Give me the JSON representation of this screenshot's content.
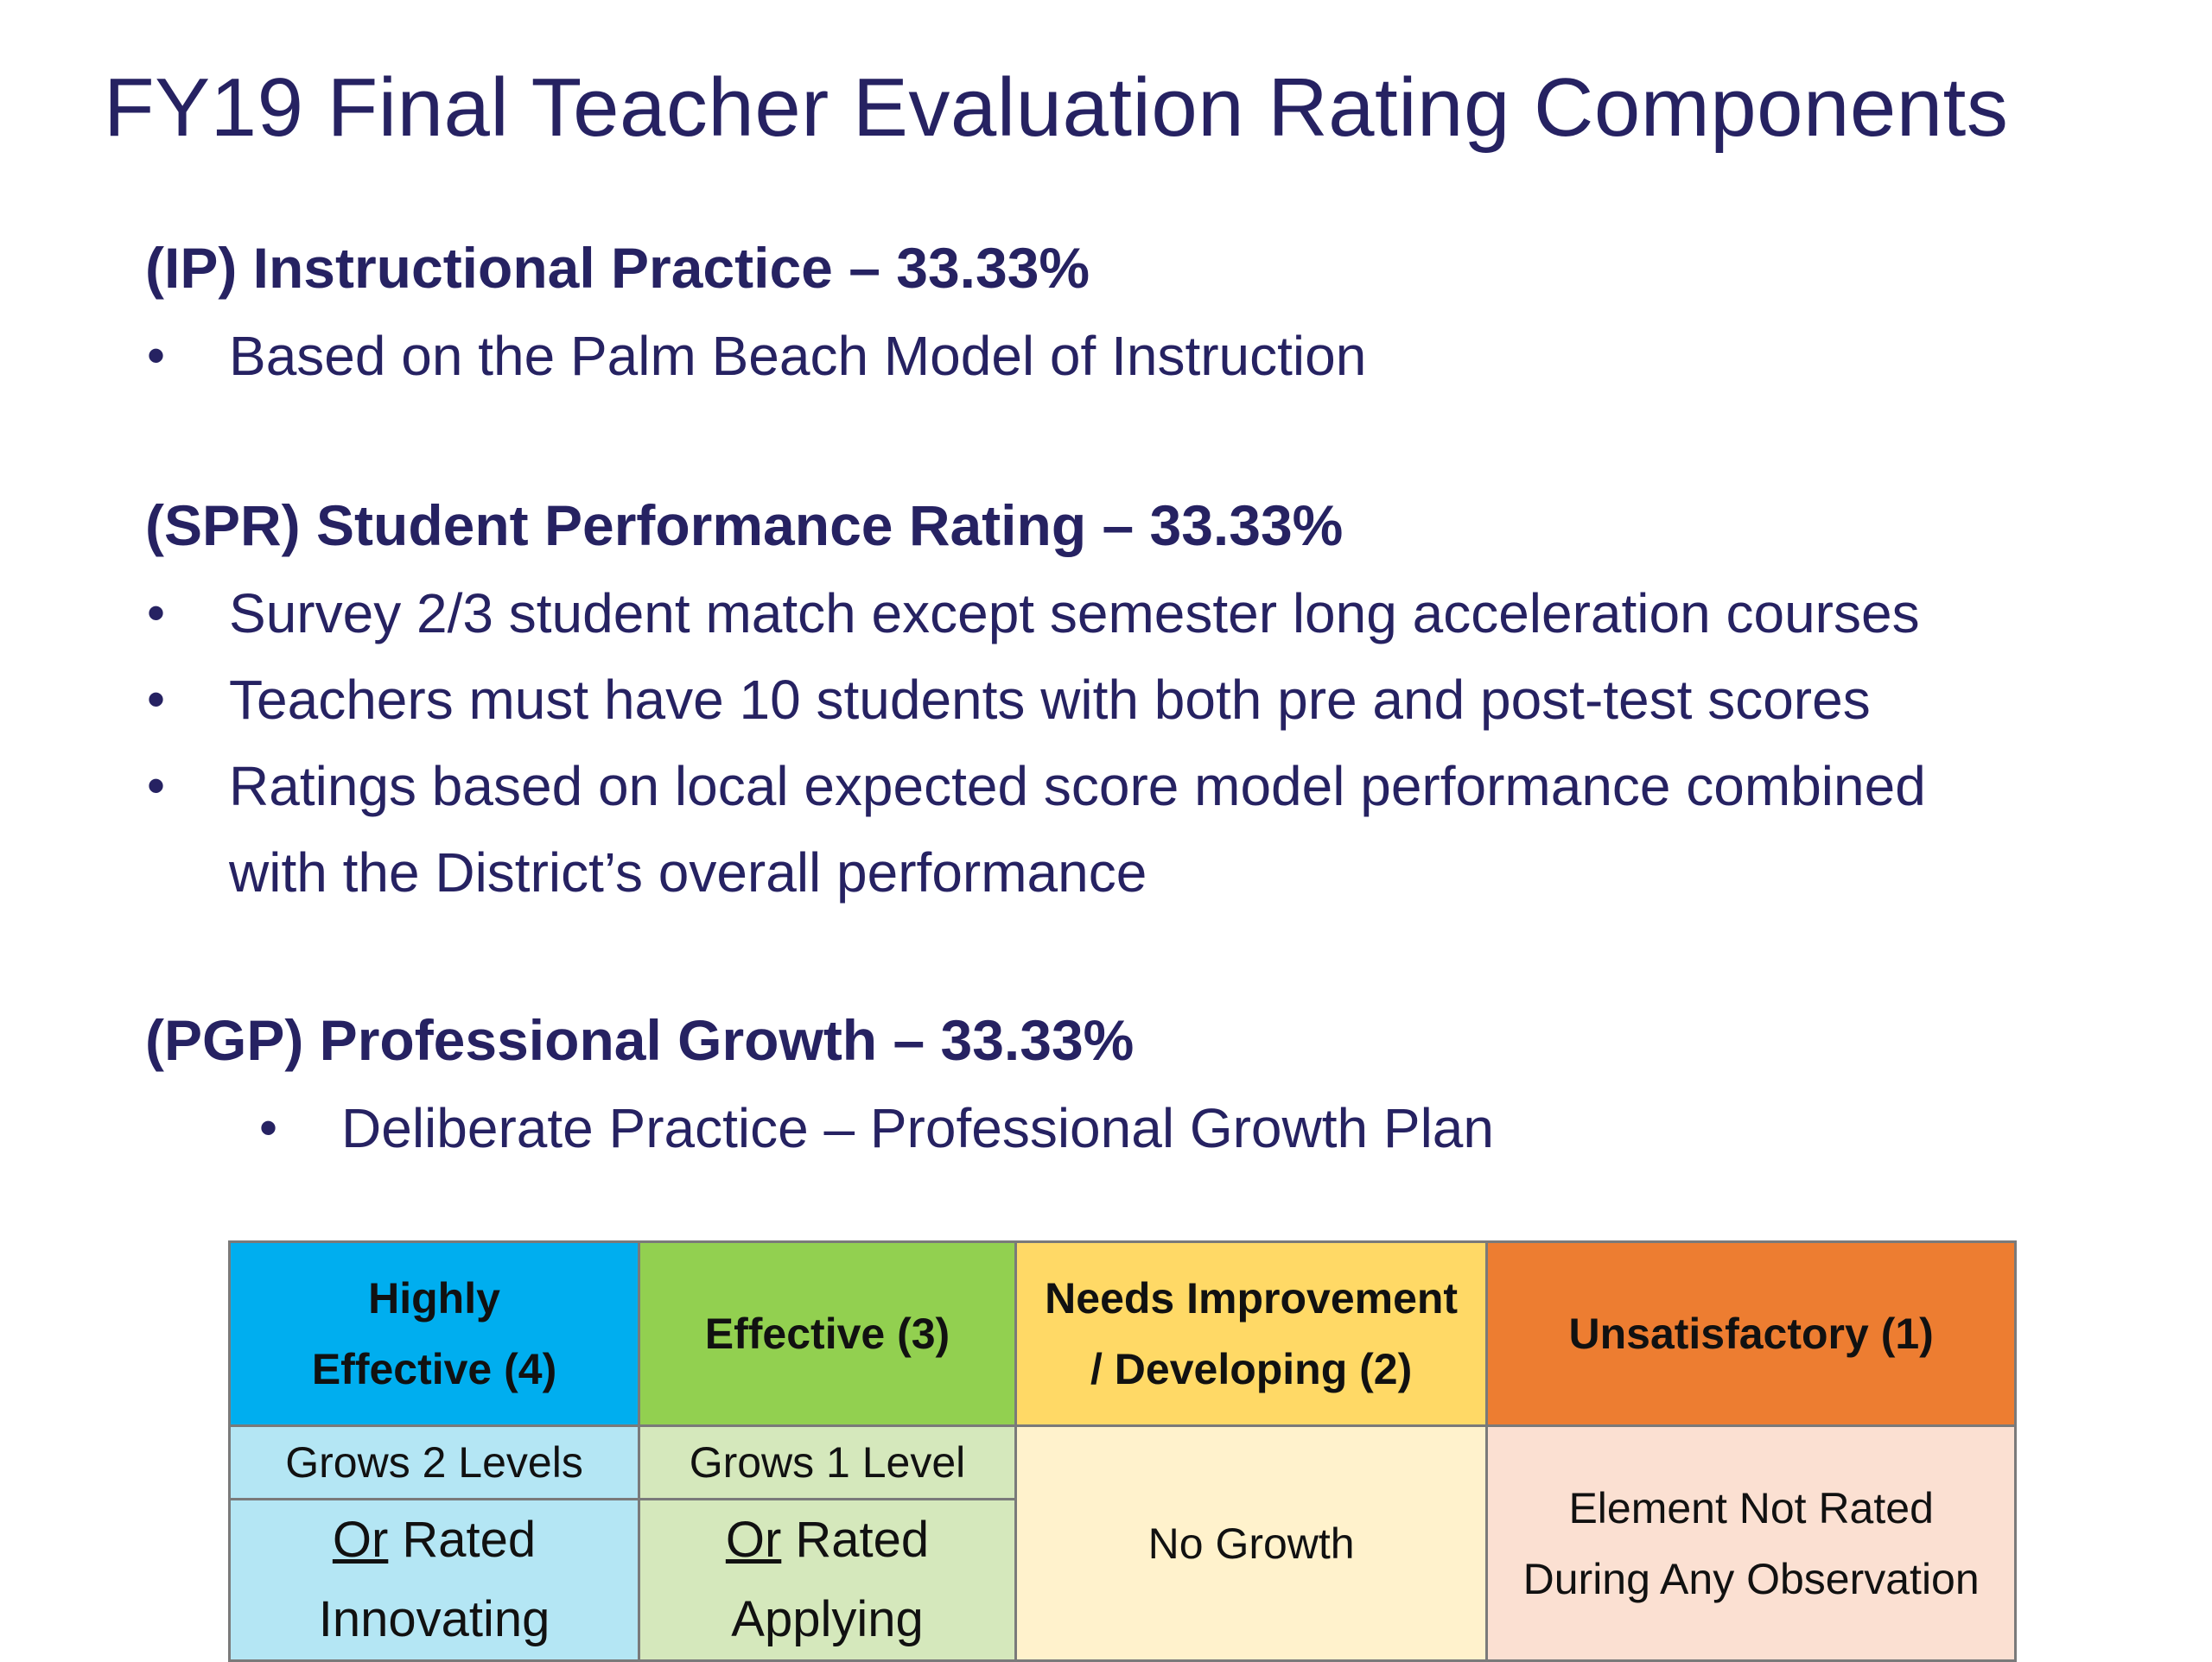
{
  "title": "FY19 Final Teacher Evaluation Rating Components",
  "sections": [
    {
      "heading": "(IP) Instructional Practice – 33.33%",
      "bullets": [
        "Based on the Palm Beach Model of Instruction"
      ]
    },
    {
      "heading": "(SPR) Student Performance Rating – 33.33%",
      "bullets": [
        "Survey 2/3 student match except semester long acceleration courses",
        "Teachers must have 10 students with both pre and post-test scores",
        "Ratings based on local expected score model performance combined",
        "with the District’s overall performance"
      ]
    },
    {
      "heading": "(PGP) Professional Growth – 33.33%",
      "bullets": [
        "Deliberate Practice – Professional Growth Plan"
      ]
    }
  ],
  "bullet_glyph": "•",
  "table": {
    "headers": {
      "highly_effective_line1": "Highly",
      "highly_effective_line2": "Effective (4)",
      "effective": "Effective (3)",
      "needs_improvement_line1": "Needs Improvement",
      "needs_improvement_line2": "/ Developing (2)",
      "unsatisfactory": "Unsatisfactory (1)"
    },
    "cells": {
      "he_grows": "Grows 2 Levels",
      "ef_grows": "Grows 1 Level",
      "he_or": "Or",
      "he_rated": " Rated",
      "he_level": "Innovating",
      "ef_or": "Or",
      "ef_rated": " Rated",
      "ef_level": "Applying",
      "ni": "No Growth",
      "us_line1": "Element Not Rated",
      "us_line2": "During Any Observation"
    },
    "colors": {
      "highly_effective_header": "#00aeef",
      "effective_header": "#92d050",
      "needs_improvement_header": "#ffd966",
      "unsatisfactory_header": "#ed7d31",
      "highly_effective_cell": "#b4e6f4",
      "effective_cell": "#d5e8bc",
      "needs_improvement_cell": "#fff2cc",
      "unsatisfactory_cell": "#fbe0d2"
    }
  },
  "colors": {
    "text": "#262262"
  }
}
